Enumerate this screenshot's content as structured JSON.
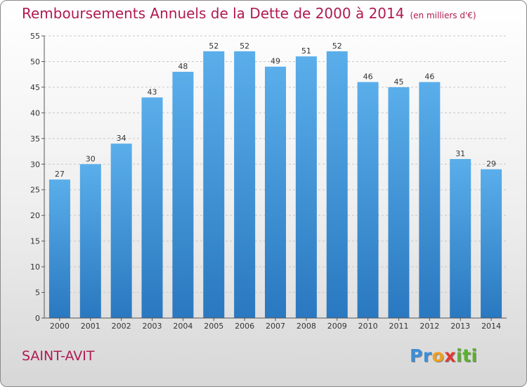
{
  "chart_data": {
    "type": "bar",
    "title": "Remboursements Annuels de la Dette de 2000 à 2014",
    "subtitle": "(en milliers d'€)",
    "categories": [
      "2000",
      "2001",
      "2002",
      "2003",
      "2004",
      "2005",
      "2006",
      "2007",
      "2008",
      "2009",
      "2010",
      "2011",
      "2012",
      "2013",
      "2014"
    ],
    "values": [
      27,
      30,
      34,
      43,
      48,
      52,
      52,
      49,
      51,
      52,
      46,
      45,
      46,
      31,
      29
    ],
    "ylim": [
      0,
      55
    ],
    "yticks": [
      0,
      5,
      10,
      15,
      20,
      25,
      30,
      35,
      40,
      45,
      50,
      55
    ],
    "grid": true,
    "bar_color": "#3d8fd6"
  },
  "footer": {
    "city": "SAINT-AVIT",
    "logo_letters": [
      "P",
      "r",
      "o",
      "x",
      "i",
      "t",
      "i"
    ],
    "logo_colors": [
      "#3a8fd8",
      "#3a8fd8",
      "#f0a020",
      "#e03a30",
      "#5cb030",
      "#5cb030",
      "#5cb030"
    ]
  }
}
